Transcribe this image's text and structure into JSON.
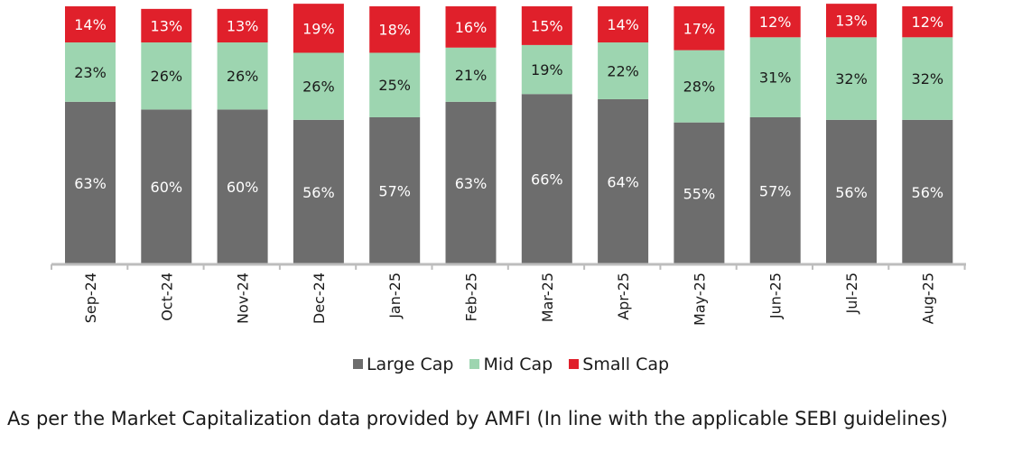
{
  "chart_data": {
    "type": "bar",
    "stacked": true,
    "categories": [
      "Sep-24",
      "Oct-24",
      "Nov-24",
      "Dec-24",
      "Jan-25",
      "Feb-25",
      "Mar-25",
      "Apr-25",
      "May-25",
      "Jun-25",
      "Jul-25",
      "Aug-25"
    ],
    "series": [
      {
        "name": "Large Cap",
        "color": "#6d6d6d",
        "label_color": "#ffffff",
        "values": [
          63,
          60,
          60,
          56,
          57,
          63,
          66,
          64,
          55,
          57,
          56,
          56
        ]
      },
      {
        "name": "Mid Cap",
        "color": "#9dd5b0",
        "label_color": "#1a1a1a",
        "values": [
          23,
          26,
          26,
          26,
          25,
          21,
          19,
          22,
          28,
          31,
          32,
          32
        ]
      },
      {
        "name": "Small Cap",
        "color": "#e0202b",
        "label_color": "#ffffff",
        "values": [
          14,
          13,
          13,
          19,
          18,
          16,
          15,
          14,
          17,
          12,
          13,
          12
        ]
      }
    ],
    "value_suffix": "%",
    "legend": "bottom-center",
    "grid": false,
    "xlabel": "",
    "ylabel": ""
  },
  "footnote": "As per the Market Capitalization data provided by AMFI (In line with the applicable SEBI guidelines)"
}
